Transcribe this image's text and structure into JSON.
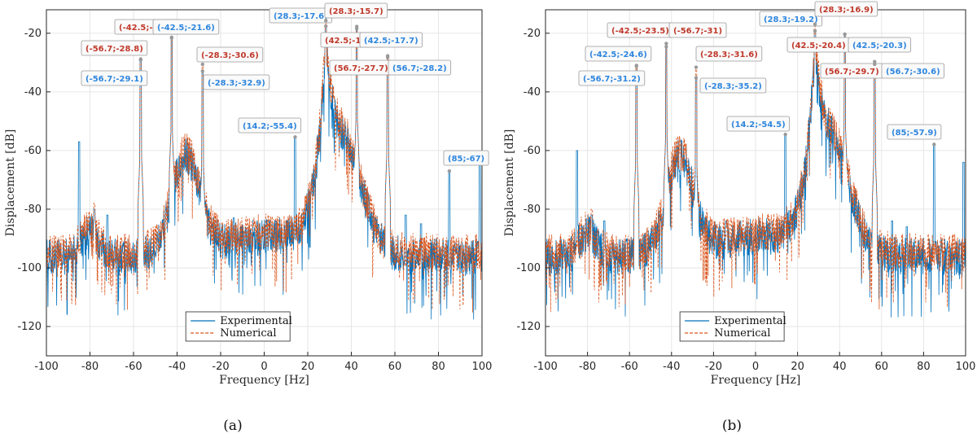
{
  "colors": {
    "experimental": "#0072BD",
    "numerical": "#D95319",
    "ann_exp": "#2E86DE",
    "ann_num": "#C0392B"
  },
  "chart_data": [
    {
      "type": "line",
      "subtitle": "(a)",
      "xlabel": "Frequency [Hz]",
      "ylabel": "Displacement [dB]",
      "xlim": [
        -100,
        100
      ],
      "ylim": [
        -130,
        -12
      ],
      "xticks": [
        -100,
        -80,
        -60,
        -40,
        -20,
        0,
        20,
        40,
        60,
        80,
        100
      ],
      "yticks": [
        -20,
        -40,
        -60,
        -80,
        -100,
        -120
      ],
      "grid": true,
      "legend": {
        "position": "bottom-center",
        "entries": [
          "Experimental",
          "Numerical"
        ]
      },
      "series": [
        {
          "name": "Experimental",
          "style": "solid",
          "peaks": [
            [
              -85,
              -57
            ],
            [
              -78,
              -80
            ],
            [
              -72,
              -82
            ],
            [
              -56.7,
              -29.1
            ],
            [
              -42.5,
              -21.6
            ],
            [
              -28.3,
              -32.9
            ],
            [
              -14,
              -83
            ],
            [
              14.2,
              -55.4
            ],
            [
              28.3,
              -17.6
            ],
            [
              42.5,
              -17.7
            ],
            [
              56.7,
              -28.2
            ],
            [
              65,
              -82
            ],
            [
              72,
              -85
            ],
            [
              85,
              -67
            ],
            [
              99,
              -62
            ]
          ]
        },
        {
          "name": "Numerical",
          "style": "dashed",
          "peaks": [
            [
              -78,
              -78
            ],
            [
              -56.7,
              -28.8
            ],
            [
              -42.5,
              -21.4
            ],
            [
              -28.3,
              -30.6
            ],
            [
              0,
              -130
            ],
            [
              28.3,
              -15.7
            ],
            [
              42.5,
              -18.4
            ],
            [
              56.7,
              -27.7
            ]
          ]
        }
      ],
      "annotations": [
        {
          "text": "(-56.7;-28.8)",
          "series": "Numerical",
          "x": -56.7,
          "y": -28.8
        },
        {
          "text": "(-56.7;-29.1)",
          "series": "Experimental",
          "x": -56.7,
          "y": -29.1
        },
        {
          "text": "(-42.5;-21.4)",
          "series": "Numerical",
          "x": -42.5,
          "y": -21.4
        },
        {
          "text": "(-42.5;-21.6)",
          "series": "Experimental",
          "x": -42.5,
          "y": -21.6
        },
        {
          "text": "(-28.3;-30.6)",
          "series": "Numerical",
          "x": -28.3,
          "y": -30.6
        },
        {
          "text": "(-28.3;-32.9)",
          "series": "Experimental",
          "x": -28.3,
          "y": -32.9
        },
        {
          "text": "(14.2;-55.4)",
          "series": "Experimental",
          "x": 14.2,
          "y": -55.4
        },
        {
          "text": "(28.3;-17.6)",
          "series": "Experimental",
          "x": 28.3,
          "y": -17.6
        },
        {
          "text": "(28.3;-15.7)",
          "series": "Numerical",
          "x": 28.3,
          "y": -15.7
        },
        {
          "text": "(42.5;-18.4)",
          "series": "Numerical",
          "x": 42.5,
          "y": -18.4
        },
        {
          "text": "(42.5;-17.7)",
          "series": "Experimental",
          "x": 42.5,
          "y": -17.7
        },
        {
          "text": "(56.7;-27.7)",
          "series": "Numerical",
          "x": 56.7,
          "y": -27.7
        },
        {
          "text": "(56.7;-28.2)",
          "series": "Experimental",
          "x": 56.7,
          "y": -28.2
        },
        {
          "text": "(85;-67)",
          "series": "Experimental",
          "x": 85,
          "y": -67
        }
      ]
    },
    {
      "type": "line",
      "subtitle": "(b)",
      "xlabel": "Frequency [Hz]",
      "ylabel": "Displacement [dB]",
      "xlim": [
        -100,
        100
      ],
      "ylim": [
        -130,
        -12
      ],
      "xticks": [
        -100,
        -80,
        -60,
        -40,
        -20,
        0,
        20,
        40,
        60,
        80,
        100
      ],
      "yticks": [
        -20,
        -40,
        -60,
        -80,
        -100,
        -120
      ],
      "grid": true,
      "legend": {
        "position": "bottom-center",
        "entries": [
          "Experimental",
          "Numerical"
        ]
      },
      "series": [
        {
          "name": "Experimental",
          "style": "solid",
          "peaks": [
            [
              -85,
              -60
            ],
            [
              -78,
              -82
            ],
            [
              -72,
              -84
            ],
            [
              -56.7,
              -31.2
            ],
            [
              -42.5,
              -24.6
            ],
            [
              -28.3,
              -35.2
            ],
            [
              -14,
              -84
            ],
            [
              14.2,
              -54.5
            ],
            [
              28.3,
              -19.2
            ],
            [
              42.5,
              -20.3
            ],
            [
              56.7,
              -30.6
            ],
            [
              65,
              -84
            ],
            [
              72,
              -86
            ],
            [
              85,
              -57.9
            ],
            [
              99,
              -64
            ]
          ]
        },
        {
          "name": "Numerical",
          "style": "dashed",
          "peaks": [
            [
              -78,
              -80
            ],
            [
              -56.7,
              -31
            ],
            [
              -42.5,
              -23.5
            ],
            [
              -28.3,
              -31.6
            ],
            [
              0,
              -130
            ],
            [
              28.3,
              -16.9
            ],
            [
              42.5,
              -20.4
            ],
            [
              56.7,
              -29.7
            ]
          ]
        }
      ],
      "annotations": [
        {
          "text": "(-42.5;-23.5)",
          "series": "Numerical",
          "x": -42.5,
          "y": -23.5
        },
        {
          "text": "(-42.5;-24.6)",
          "series": "Experimental",
          "x": -42.5,
          "y": -24.6
        },
        {
          "text": "(-56.7;-31)",
          "series": "Numerical",
          "x": -56.7,
          "y": -31
        },
        {
          "text": "(-56.7;-31.2)",
          "series": "Experimental",
          "x": -56.7,
          "y": -31.2
        },
        {
          "text": "(-28.3;-31.6)",
          "series": "Numerical",
          "x": -28.3,
          "y": -31.6
        },
        {
          "text": "(-28.3;-35.2)",
          "series": "Experimental",
          "x": -28.3,
          "y": -35.2
        },
        {
          "text": "(14.2;-54.5)",
          "series": "Experimental",
          "x": 14.2,
          "y": -54.5
        },
        {
          "text": "(28.3;-19.2)",
          "series": "Experimental",
          "x": 28.3,
          "y": -19.2
        },
        {
          "text": "(28.3;-16.9)",
          "series": "Numerical",
          "x": 28.3,
          "y": -16.9
        },
        {
          "text": "(42.5;-20.4)",
          "series": "Numerical",
          "x": 42.5,
          "y": -20.4
        },
        {
          "text": "(42.5;-20.3)",
          "series": "Experimental",
          "x": 42.5,
          "y": -20.3
        },
        {
          "text": "(56.7;-29.7)",
          "series": "Numerical",
          "x": 56.7,
          "y": -29.7
        },
        {
          "text": "(56.7;-30.6)",
          "series": "Experimental",
          "x": 56.7,
          "y": -30.6
        },
        {
          "text": "(85;-57.9)",
          "series": "Experimental",
          "x": 85,
          "y": -57.9
        }
      ]
    }
  ]
}
